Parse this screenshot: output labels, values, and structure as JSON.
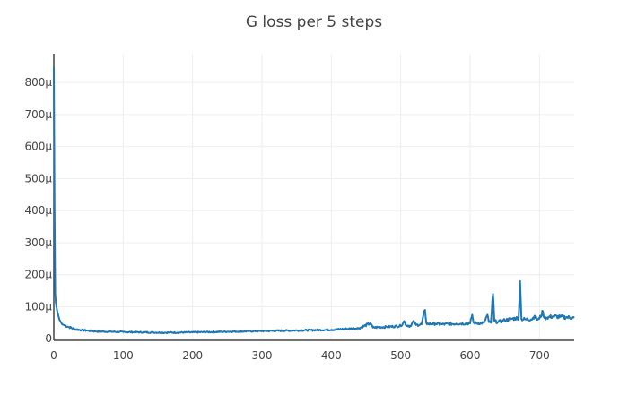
{
  "chart_data": {
    "type": "line",
    "title": "G loss per 5 steps",
    "xlabel": "",
    "ylabel": "",
    "xlim": [
      0,
      750
    ],
    "ylim": [
      -5,
      890
    ],
    "x_ticks": [
      0,
      100,
      200,
      300,
      400,
      500,
      600,
      700
    ],
    "x_tick_labels": [
      "0",
      "100",
      "200",
      "300",
      "400",
      "500",
      "600",
      "700"
    ],
    "y_ticks": [
      0,
      100,
      200,
      300,
      400,
      500,
      600,
      700,
      800
    ],
    "y_tick_labels": [
      "0",
      "100μ",
      "200μ",
      "300μ",
      "400μ",
      "500μ",
      "600μ",
      "700μ",
      "800μ"
    ],
    "grid": true,
    "legend": "none",
    "line_color": "#1f77b4",
    "grid_color": "#eeeeee",
    "axis_color": "#444444",
    "series": [
      {
        "x": [
          0,
          1,
          2,
          3,
          5,
          8,
          12,
          20,
          30,
          40,
          50,
          60,
          80,
          100,
          130,
          160,
          200,
          250,
          300,
          350,
          400,
          440,
          456,
          460,
          480,
          500,
          505,
          508,
          515,
          518,
          522,
          530,
          535,
          537,
          540,
          550,
          560,
          580,
          600,
          603,
          605,
          610,
          620,
          625,
          627,
          630,
          633,
          635,
          640,
          650,
          660,
          670,
          672,
          674,
          680,
          690,
          693,
          696,
          700,
          705,
          707,
          710,
          720,
          730,
          740,
          750
        ],
        "y": [
          850,
          420,
          140,
          110,
          85,
          60,
          45,
          38,
          30,
          27,
          25,
          23,
          22,
          21,
          20,
          19,
          20,
          22,
          24,
          26,
          28,
          33,
          48,
          35,
          37,
          40,
          55,
          42,
          40,
          55,
          43,
          45,
          90,
          48,
          46,
          47,
          45,
          47,
          48,
          75,
          50,
          48,
          50,
          75,
          52,
          50,
          140,
          55,
          52,
          58,
          62,
          65,
          180,
          62,
          60,
          62,
          72,
          60,
          63,
          85,
          65,
          66,
          70,
          68,
          67,
          65
        ]
      }
    ]
  }
}
